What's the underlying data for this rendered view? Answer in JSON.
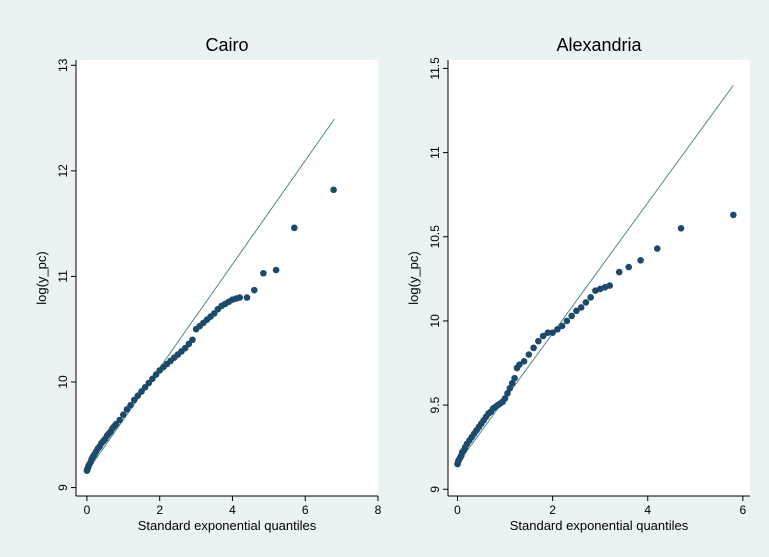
{
  "chart_data": [
    {
      "type": "scatter",
      "title": "Cairo",
      "xlabel": "Standard exponential quantiles",
      "ylabel": "log(y_pc)",
      "xlim": [
        -0.3,
        8
      ],
      "ylim": [
        8.92,
        13.05
      ],
      "xticks": [
        0,
        2,
        4,
        6,
        8
      ],
      "yticks": [
        9,
        10,
        11,
        12,
        13
      ],
      "grid": false,
      "reference_line": {
        "x": [
          0,
          6.8
        ],
        "y": [
          9.15,
          12.49
        ],
        "color": "#4f8a8b"
      },
      "marker_color": "#1c4a6b",
      "series": [
        {
          "x": [
            0,
            0.01,
            0.02,
            0.03,
            0.05,
            0.07,
            0.1,
            0.13,
            0.16,
            0.2,
            0.25,
            0.3,
            0.35,
            0.4,
            0.45,
            0.5,
            0.55,
            0.6,
            0.65,
            0.7,
            0.75,
            0.8,
            0.9,
            1.0,
            1.1,
            1.2,
            1.3,
            1.4,
            1.5,
            1.6,
            1.7,
            1.8,
            1.9,
            2.0,
            2.1,
            2.2,
            2.3,
            2.4,
            2.5,
            2.6,
            2.7,
            2.8,
            2.9,
            3.0,
            3.1,
            3.2,
            3.3,
            3.4,
            3.5,
            3.6,
            3.7,
            3.8,
            3.9,
            4.0,
            4.1,
            4.2,
            4.4,
            4.6,
            4.85,
            5.2,
            5.7,
            6.78
          ],
          "y": [
            9.16,
            9.17,
            9.18,
            9.19,
            9.21,
            9.22,
            9.24,
            9.27,
            9.29,
            9.31,
            9.34,
            9.37,
            9.39,
            9.42,
            9.44,
            9.46,
            9.49,
            9.51,
            9.53,
            9.56,
            9.58,
            9.6,
            9.64,
            9.69,
            9.74,
            9.78,
            9.83,
            9.87,
            9.91,
            9.95,
            9.99,
            10.03,
            10.07,
            10.11,
            10.14,
            10.17,
            10.2,
            10.23,
            10.26,
            10.29,
            10.32,
            10.36,
            10.4,
            10.5,
            10.53,
            10.56,
            10.59,
            10.62,
            10.65,
            10.69,
            10.72,
            10.74,
            10.76,
            10.78,
            10.79,
            10.8,
            10.8,
            10.87,
            11.03,
            11.06,
            11.46,
            11.82
          ]
        }
      ]
    },
    {
      "type": "scatter",
      "title": "Alexandria",
      "xlabel": "Standard exponential quantiles",
      "ylabel": "log(y_pc)",
      "xlim": [
        -0.2,
        6.15
      ],
      "ylim": [
        8.96,
        11.55
      ],
      "xticks": [
        0,
        2,
        4,
        6
      ],
      "yticks": [
        9,
        9.5,
        10,
        10.5,
        11,
        11.5
      ],
      "grid": false,
      "reference_line": {
        "x": [
          0,
          5.8
        ],
        "y": [
          9.15,
          11.4
        ],
        "color": "#4f8a8b"
      },
      "marker_color": "#1c4a6b",
      "series": [
        {
          "x": [
            0,
            0.01,
            0.02,
            0.04,
            0.06,
            0.08,
            0.1,
            0.13,
            0.16,
            0.2,
            0.25,
            0.3,
            0.35,
            0.4,
            0.45,
            0.5,
            0.55,
            0.6,
            0.65,
            0.7,
            0.75,
            0.8,
            0.85,
            0.9,
            0.95,
            1.0,
            1.05,
            1.1,
            1.15,
            1.2,
            1.25,
            1.3,
            1.4,
            1.5,
            1.6,
            1.7,
            1.8,
            1.9,
            2.0,
            2.1,
            2.2,
            2.3,
            2.4,
            2.5,
            2.6,
            2.7,
            2.8,
            2.9,
            3.0,
            3.1,
            3.2,
            3.4,
            3.6,
            3.85,
            4.2,
            4.7,
            5.8
          ],
          "y": [
            9.15,
            9.16,
            9.17,
            9.18,
            9.19,
            9.2,
            9.22,
            9.23,
            9.25,
            9.27,
            9.29,
            9.31,
            9.33,
            9.35,
            9.37,
            9.39,
            9.41,
            9.43,
            9.45,
            9.46,
            9.48,
            9.49,
            9.5,
            9.51,
            9.52,
            9.54,
            9.57,
            9.6,
            9.63,
            9.66,
            9.72,
            9.74,
            9.76,
            9.8,
            9.84,
            9.88,
            9.91,
            9.93,
            9.93,
            9.95,
            9.97,
            10.0,
            10.03,
            10.06,
            10.08,
            10.11,
            10.14,
            10.18,
            10.19,
            10.2,
            10.21,
            10.29,
            10.32,
            10.36,
            10.43,
            10.55,
            10.63
          ]
        }
      ]
    }
  ]
}
